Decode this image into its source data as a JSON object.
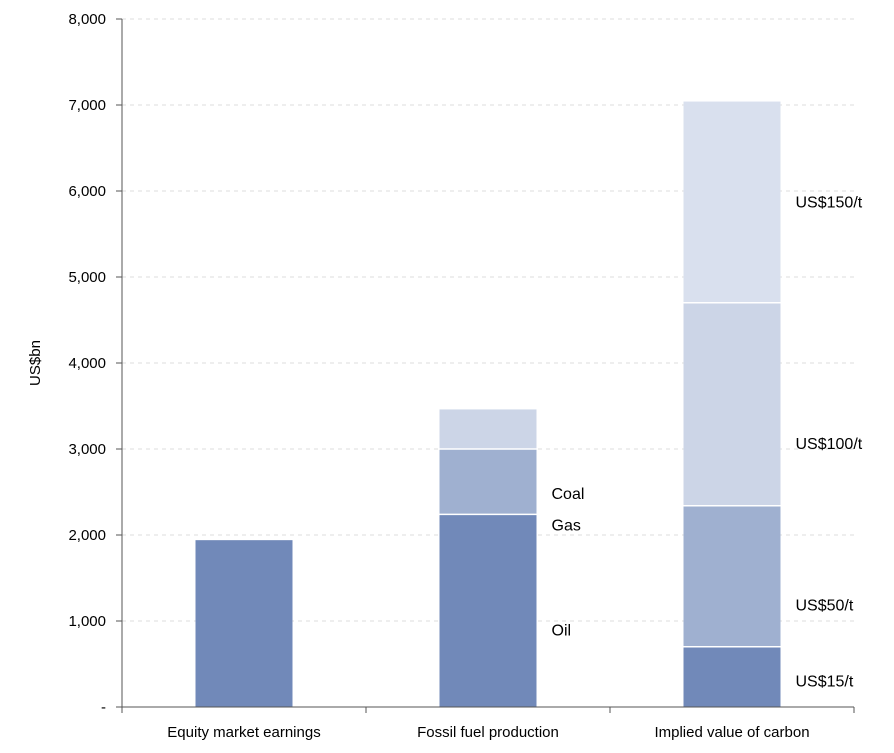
{
  "chart_data": {
    "type": "bar",
    "stacked": true,
    "ylabel": "US$bn",
    "xlabel": "",
    "ylim": [
      0,
      8000
    ],
    "yticks": [
      0,
      1000,
      2000,
      3000,
      4000,
      5000,
      6000,
      7000,
      8000
    ],
    "ytick_labels": [
      "-",
      "1,000",
      "2,000",
      "3,000",
      "4,000",
      "5,000",
      "6,000",
      "7,000",
      "8,000"
    ],
    "grid": true,
    "categories": [
      "Equity market earnings",
      "Fossil fuel production",
      "Implied value of carbon"
    ],
    "stacks": [
      {
        "category": "Equity market earnings",
        "segments": [
          {
            "label": "",
            "value": 1940,
            "color": "#7189b9"
          }
        ]
      },
      {
        "category": "Fossil fuel production",
        "segments": [
          {
            "label": "Oil",
            "value": 2240,
            "color": "#7189b9"
          },
          {
            "label": "Gas",
            "value": 760,
            "color": "#9fb0d0"
          },
          {
            "label": "Coal",
            "value": 460,
            "color": "#ccd5e7"
          }
        ]
      },
      {
        "category": "Implied value of carbon",
        "segments": [
          {
            "label": "US$15/t",
            "value": 700,
            "color": "#7189b9"
          },
          {
            "label": "US$50/t",
            "value": 1640,
            "color": "#9fb0d0"
          },
          {
            "label": "US$100/t",
            "value": 2360,
            "color": "#ccd5e7"
          },
          {
            "label": "US$150/t",
            "value": 2340,
            "color": "#d9e0ee"
          }
        ]
      }
    ],
    "segment_label_placement": [
      {
        "category": "Fossil fuel production",
        "label": "Oil",
        "anchor_value": 900
      },
      {
        "category": "Fossil fuel production",
        "label": "Gas",
        "anchor_value": 2120
      },
      {
        "category": "Fossil fuel production",
        "label": "Coal",
        "anchor_value": 2490
      },
      {
        "category": "Implied value of carbon",
        "label": "US$15/t",
        "anchor_value": 310
      },
      {
        "category": "Implied value of carbon",
        "label": "US$50/t",
        "anchor_value": 1190
      },
      {
        "category": "Implied value of carbon",
        "label": "US$100/t",
        "anchor_value": 3070
      },
      {
        "category": "Implied value of carbon",
        "label": "US$150/t",
        "anchor_value": 5880
      }
    ],
    "colors": {
      "axis": "#555555",
      "grid": "#dddddd",
      "separator": "#ffffff"
    }
  }
}
